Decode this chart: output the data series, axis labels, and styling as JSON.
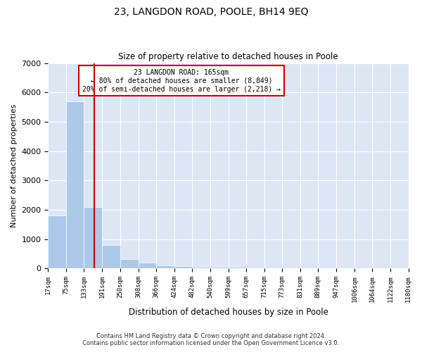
{
  "title": "23, LANGDON ROAD, POOLE, BH14 9EQ",
  "subtitle": "Size of property relative to detached houses in Poole",
  "xlabel": "Distribution of detached houses by size in Poole",
  "ylabel": "Number of detached properties",
  "footer_line1": "Contains HM Land Registry data © Crown copyright and database right 2024.",
  "footer_line2": "Contains public sector information licensed under the Open Government Licence v3.0.",
  "annotation_line1": "23 LANGDON ROAD: 165sqm",
  "annotation_line2": "← 80% of detached houses are smaller (8,849)",
  "annotation_line3": "20% of semi-detached houses are larger (2,218) →",
  "property_size": 165,
  "bar_color": "#adc9e9",
  "vline_color": "#cc0000",
  "annotation_box_edgecolor": "#cc0000",
  "plot_bg_color": "#dce6f5",
  "bins": [
    17,
    75,
    133,
    191,
    250,
    308,
    366,
    424,
    482,
    540,
    599,
    657,
    715,
    773,
    831,
    889,
    947,
    1006,
    1064,
    1122,
    1180
  ],
  "counts": [
    1800,
    5700,
    2100,
    800,
    330,
    200,
    110,
    90,
    60,
    55,
    50,
    0,
    0,
    0,
    0,
    0,
    0,
    0,
    0,
    0
  ],
  "ylim": [
    0,
    7000
  ],
  "yticks": [
    0,
    1000,
    2000,
    3000,
    4000,
    5000,
    6000,
    7000
  ]
}
